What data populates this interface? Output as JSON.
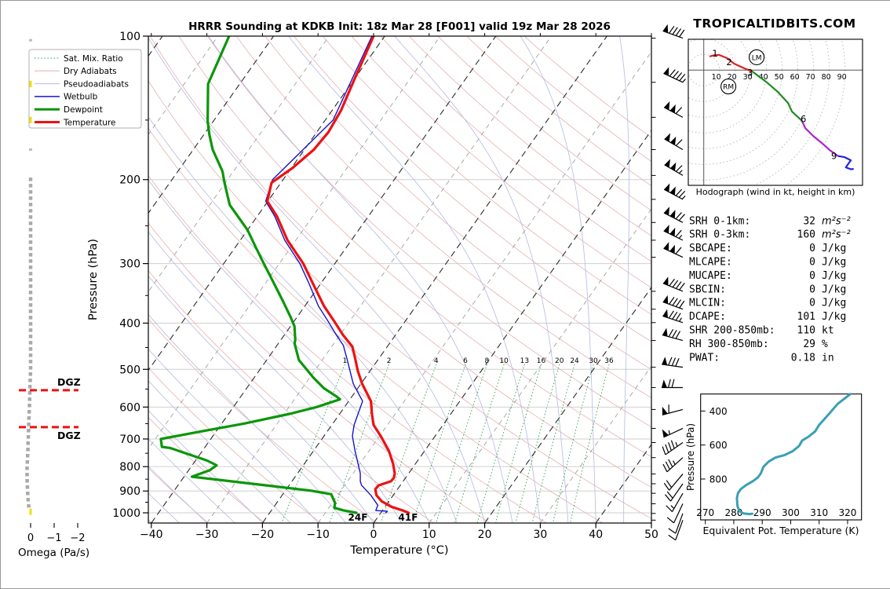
{
  "watermark": "TROPICALTIDBITS.COM",
  "legend": {
    "items": [
      {
        "label": "Sat. Mix. Ratio",
        "color": "#2e9e4f",
        "style": "dotted",
        "width": 1
      },
      {
        "label": "Dry Adiabats",
        "color": "#e7b0b0",
        "style": "solid",
        "width": 1
      },
      {
        "label": "Pseudoadiabats",
        "color": "#b4bade",
        "style": "solid",
        "width": 1
      },
      {
        "label": "Wetbulb",
        "color": "#1414cc",
        "style": "solid",
        "width": 1.5
      },
      {
        "label": "Dewpoint",
        "color": "#0a960a",
        "style": "solid",
        "width": 3
      },
      {
        "label": "Temperature",
        "color": "#ee1111",
        "style": "solid",
        "width": 3
      }
    ]
  },
  "chart_data": [
    {
      "id": "skewt",
      "type": "line",
      "title": "HRRR Sounding at KDKB Init: 18z Mar 28 [F001] valid 19z Mar 28 2026",
      "xlabel": "Temperature (°C)",
      "ylabel": "Pressure (hPa)",
      "xlim": [
        -40,
        50
      ],
      "plim": [
        100,
        1050
      ],
      "temp_ticks": [
        -40,
        -30,
        -20,
        -10,
        0,
        10,
        20,
        30,
        40,
        50
      ],
      "pressure_ticks": [
        100,
        200,
        300,
        400,
        500,
        600,
        700,
        800,
        900,
        1000
      ],
      "minor_pressure_ticks": [
        150,
        250,
        350,
        450,
        550,
        650,
        750,
        850,
        950
      ],
      "mixing_ratio_values": [
        1,
        2,
        4,
        6,
        8,
        10,
        13,
        16,
        20,
        24,
        30,
        36
      ],
      "dgz_label": "DGZ",
      "dgz_pressures": [
        553,
        661
      ],
      "surface_labels": {
        "dewpoint": "24F",
        "temperature": "41F"
      },
      "series": [
        {
          "name": "Temperature",
          "color": "#ee1111",
          "width": 3.2,
          "points": [
            [
              100,
              -62
            ],
            [
              125,
              -59.8
            ],
            [
              143,
              -58.4
            ],
            [
              159,
              -57.9
            ],
            [
              173,
              -58.3
            ],
            [
              189,
              -59.8
            ],
            [
              203,
              -61.7
            ],
            [
              222,
              -60.1
            ],
            [
              239,
              -56.4
            ],
            [
              268,
              -51.5
            ],
            [
              300,
              -45.7
            ],
            [
              332,
              -41.2
            ],
            [
              368,
              -36.6
            ],
            [
              397,
              -32.7
            ],
            [
              424,
              -29.4
            ],
            [
              448,
              -26.3
            ],
            [
              474,
              -24.3
            ],
            [
              504,
              -22.2
            ],
            [
              536,
              -19.8
            ],
            [
              583,
              -16.0
            ],
            [
              620,
              -14.2
            ],
            [
              654,
              -12.5
            ],
            [
              690,
              -9.8
            ],
            [
              742,
              -6.4
            ],
            [
              790,
              -4.0
            ],
            [
              827,
              -2.5
            ],
            [
              845,
              -2.1
            ],
            [
              859,
              -2.2
            ],
            [
              876,
              -3.9
            ],
            [
              892,
              -4.0
            ],
            [
              919,
              -3.0
            ],
            [
              946,
              -1.3
            ],
            [
              971,
              1.1
            ],
            [
              989,
              3.7
            ],
            [
              1000,
              5.0
            ]
          ]
        },
        {
          "name": "Dewpoint",
          "color": "#0a960a",
          "width": 3.2,
          "points": [
            [
              100,
              -88
            ],
            [
              126,
              -85.7
            ],
            [
              151,
              -81
            ],
            [
              161,
              -79
            ],
            [
              173,
              -76.5
            ],
            [
              192,
              -72
            ],
            [
              204,
              -70
            ],
            [
              226,
              -66.4
            ],
            [
              255,
              -60
            ],
            [
              278,
              -56.2
            ],
            [
              300,
              -52.8
            ],
            [
              329,
              -48.6
            ],
            [
              361,
              -44.4
            ],
            [
              389,
              -41.1
            ],
            [
              406,
              -39.3
            ],
            [
              434,
              -37.4
            ],
            [
              441,
              -37.1
            ],
            [
              478,
              -34.2
            ],
            [
              520,
              -29.4
            ],
            [
              548,
              -26.1
            ],
            [
              570,
              -22.8
            ],
            [
              578,
              -21.8
            ],
            [
              600,
              -25
            ],
            [
              620,
              -29
            ],
            [
              650,
              -36
            ],
            [
              680,
              -44
            ],
            [
              700,
              -49
            ],
            [
              727,
              -47.8
            ],
            [
              731,
              -46.2
            ],
            [
              777,
              -37.9
            ],
            [
              795,
              -35.6
            ],
            [
              814,
              -36.2
            ],
            [
              840,
              -38.6
            ],
            [
              877,
              -23.7
            ],
            [
              898,
              -15.6
            ],
            [
              914,
              -11.3
            ],
            [
              953,
              -9.5
            ],
            [
              976,
              -9.0
            ],
            [
              988,
              -7.1
            ],
            [
              1000,
              -4.4
            ]
          ]
        },
        {
          "name": "Wetbulb",
          "color": "#1414cc",
          "width": 1.4,
          "points": [
            [
              100,
              -62.3
            ],
            [
              150,
              -58.6
            ],
            [
              200,
              -61.9
            ],
            [
              222,
              -60.4
            ],
            [
              239,
              -56.8
            ],
            [
              268,
              -52
            ],
            [
              300,
              -46.3
            ],
            [
              332,
              -41.9
            ],
            [
              368,
              -37.6
            ],
            [
              397,
              -33.8
            ],
            [
              424,
              -30.6
            ],
            [
              445,
              -28.1
            ],
            [
              474,
              -25.8
            ],
            [
              504,
              -23.6
            ],
            [
              536,
              -21.4
            ],
            [
              583,
              -17.5
            ],
            [
              654,
              -16.0
            ],
            [
              690,
              -14.9
            ],
            [
              742,
              -12.5
            ],
            [
              790,
              -10.3
            ],
            [
              827,
              -8.7
            ],
            [
              859,
              -7.7
            ],
            [
              875,
              -7.0
            ],
            [
              919,
              -4.0
            ],
            [
              964,
              -1.5
            ],
            [
              989,
              -1.2
            ],
            [
              993,
              1.0
            ],
            [
              1000,
              0.9
            ]
          ]
        }
      ]
    },
    {
      "id": "hodograph",
      "type": "line",
      "caption": "Hodograph (wind in kt, height in km)",
      "rings_kt": [
        10,
        20,
        30,
        40,
        50,
        60,
        70,
        80,
        90
      ],
      "segments": [
        {
          "layer": "0-3km",
          "color": "#dd2222",
          "points_uv": [
            [
              3.7,
              8.7
            ],
            [
              6.2,
              9.4
            ],
            [
              9.7,
              9.7
            ],
            [
              14.7,
              7.7
            ],
            [
              19.2,
              4.2
            ],
            [
              25.7,
              1.2
            ],
            [
              31,
              -0.9
            ]
          ]
        },
        {
          "layer": "3-6km",
          "color": "#1e8b1e",
          "points_uv": [
            [
              31,
              -0.9
            ],
            [
              39.7,
              -7.4
            ],
            [
              47.2,
              -13.9
            ],
            [
              53.7,
              -20.9
            ],
            [
              56.2,
              -26.4
            ],
            [
              62.5,
              -32.2
            ]
          ]
        },
        {
          "layer": "6-9km",
          "color": "#aa22cc",
          "points_uv": [
            [
              62.5,
              -32.2
            ],
            [
              64.7,
              -36.9
            ],
            [
              69.7,
              -41.9
            ],
            [
              75.2,
              -46.4
            ],
            [
              80.2,
              -50.9
            ],
            [
              85.5,
              -54.7
            ]
          ]
        },
        {
          "layer": "9km+",
          "color": "#2222dd",
          "points_uv": [
            [
              85.5,
              -54.7
            ],
            [
              89.7,
              -55.4
            ],
            [
              93.7,
              -57.4
            ],
            [
              91.2,
              -60.9
            ],
            [
              90.5,
              -61.9
            ],
            [
              93.7,
              -63.1
            ],
            [
              95.5,
              -62.9
            ]
          ]
        }
      ],
      "height_labels": [
        {
          "km": "1",
          "u": 7.2,
          "v": 10.7
        },
        {
          "km": "2",
          "u": 16.2,
          "v": 5.2
        },
        {
          "km": "3",
          "u": 29.5,
          "v": -1.5
        },
        {
          "km": "6",
          "u": 63.5,
          "v": -31.0
        },
        {
          "km": "9",
          "u": 83.0,
          "v": -54.5
        }
      ],
      "storm_motion": {
        "lm": {
          "label": "LM",
          "u": 33.7,
          "v": 8.2
        },
        "rm": {
          "label": "RM",
          "u": 15.7,
          "v": -10.4
        }
      }
    },
    {
      "id": "wind_barbs",
      "type": "barbs",
      "levels": [
        {
          "p": 101,
          "spd_kt": 90,
          "dir_deg": 290
        },
        {
          "p": 125,
          "spd_kt": 95,
          "dir_deg": 295
        },
        {
          "p": 148,
          "spd_kt": 110,
          "dir_deg": 298
        },
        {
          "p": 173,
          "spd_kt": 110,
          "dir_deg": 300
        },
        {
          "p": 196,
          "spd_kt": 115,
          "dir_deg": 300
        },
        {
          "p": 220,
          "spd_kt": 125,
          "dir_deg": 298
        },
        {
          "p": 246,
          "spd_kt": 120,
          "dir_deg": 297
        },
        {
          "p": 268,
          "spd_kt": 115,
          "dir_deg": 296
        },
        {
          "p": 291,
          "spd_kt": 110,
          "dir_deg": 295
        },
        {
          "p": 343,
          "spd_kt": 90,
          "dir_deg": 292
        },
        {
          "p": 374,
          "spd_kt": 90,
          "dir_deg": 290
        },
        {
          "p": 399,
          "spd_kt": 85,
          "dir_deg": 288
        },
        {
          "p": 435,
          "spd_kt": 80,
          "dir_deg": 285
        },
        {
          "p": 495,
          "spd_kt": 80,
          "dir_deg": 278
        },
        {
          "p": 546,
          "spd_kt": 70,
          "dir_deg": 270
        },
        {
          "p": 607,
          "spd_kt": 60,
          "dir_deg": 255
        },
        {
          "p": 665,
          "spd_kt": 55,
          "dir_deg": 245
        },
        {
          "p": 712,
          "spd_kt": 45,
          "dir_deg": 235
        },
        {
          "p": 766,
          "spd_kt": 35,
          "dir_deg": 228
        },
        {
          "p": 829,
          "spd_kt": 20,
          "dir_deg": 220
        },
        {
          "p": 869,
          "spd_kt": 20,
          "dir_deg": 215
        },
        {
          "p": 910,
          "spd_kt": 15,
          "dir_deg": 210
        },
        {
          "p": 957,
          "spd_kt": 10,
          "dir_deg": 205
        },
        {
          "p": 1003,
          "spd_kt": 10,
          "dir_deg": 200
        },
        {
          "p": 1036,
          "spd_kt": 10,
          "dir_deg": 200
        }
      ]
    },
    {
      "id": "omega",
      "type": "line",
      "xlabel": "Omega (Pa/s)",
      "ticks": [
        0,
        -1,
        -2
      ],
      "profile": [
        [
          198,
          0
        ],
        [
          250,
          0
        ],
        [
          300,
          0
        ],
        [
          350,
          0
        ],
        [
          400,
          0
        ],
        [
          450,
          0
        ],
        [
          500,
          0
        ],
        [
          550,
          0.03
        ],
        [
          600,
          0.05
        ],
        [
          650,
          0.08
        ],
        [
          700,
          0.1
        ],
        [
          750,
          0.12
        ],
        [
          800,
          0.15
        ],
        [
          850,
          0.15
        ],
        [
          900,
          0.13
        ],
        [
          950,
          0.1
        ],
        [
          988,
          0.06
        ]
      ],
      "sparse_marks_p": [
        102,
        173
      ],
      "yellow_marks_p": [
        126,
        150,
        995
      ]
    },
    {
      "id": "thetae",
      "type": "line",
      "xlabel": "Equivalent Pot. Temperature (K)",
      "ylabel": "Pressure (hPa)",
      "x_ticks": [
        270,
        280,
        290,
        300,
        310,
        320
      ],
      "p_ticks": [
        400,
        600,
        800
      ],
      "color": "#3a9fb5",
      "points": [
        [
          300,
          321
        ],
        [
          358,
          316.5
        ],
        [
          420,
          313.3
        ],
        [
          482,
          310
        ],
        [
          520,
          308.6
        ],
        [
          551,
          306.3
        ],
        [
          574,
          304
        ],
        [
          605,
          303
        ],
        [
          636,
          300.7
        ],
        [
          659,
          297.9
        ],
        [
          674,
          294.6
        ],
        [
          697,
          292.3
        ],
        [
          728,
          290.4
        ],
        [
          767,
          289.5
        ],
        [
          790,
          288.5
        ],
        [
          813,
          286.7
        ],
        [
          836,
          284.3
        ],
        [
          859,
          282.5
        ],
        [
          882,
          281.5
        ],
        [
          913,
          281.1
        ],
        [
          959,
          281.3
        ],
        [
          990,
          282
        ],
        [
          1002,
          283.4
        ],
        [
          1006,
          285.5
        ],
        [
          1004,
          286.5
        ]
      ]
    },
    {
      "id": "indices",
      "type": "table",
      "rows": [
        {
          "label": "SRH 0-1km:",
          "value": "32",
          "unit": "m²s⁻²",
          "color": "#000000",
          "italic_unit": true
        },
        {
          "label": "SRH 0-3km:",
          "value": "160",
          "unit": "m²s⁻²",
          "color": "#000000",
          "italic_unit": true
        },
        {
          "label": "SBCAPE:",
          "value": "0",
          "unit": "J/kg",
          "color": "#000000"
        },
        {
          "label": "MLCAPE:",
          "value": "0",
          "unit": "J/kg",
          "color": "#000000"
        },
        {
          "label": "MUCAPE:",
          "value": "0",
          "unit": "J/kg",
          "color": "#000000"
        },
        {
          "label": "SBCIN:",
          "value": "0",
          "unit": "J/kg",
          "color": "#000000"
        },
        {
          "label": "MLCIN:",
          "value": "0",
          "unit": "J/kg",
          "color": "#000000"
        },
        {
          "label": "DCAPE:",
          "value": "101",
          "unit": "J/kg",
          "color": "#3333cc"
        },
        {
          "label": "SHR 200-850mb:",
          "value": "110",
          "unit": "kt",
          "color": "#b22222"
        },
        {
          "label": "RH 300-850mb:",
          "value": "29",
          "unit": "%",
          "color": "#b8860b"
        },
        {
          "label": "PWAT:",
          "value": "0.18",
          "unit": "in",
          "color": "#000000"
        }
      ]
    }
  ]
}
